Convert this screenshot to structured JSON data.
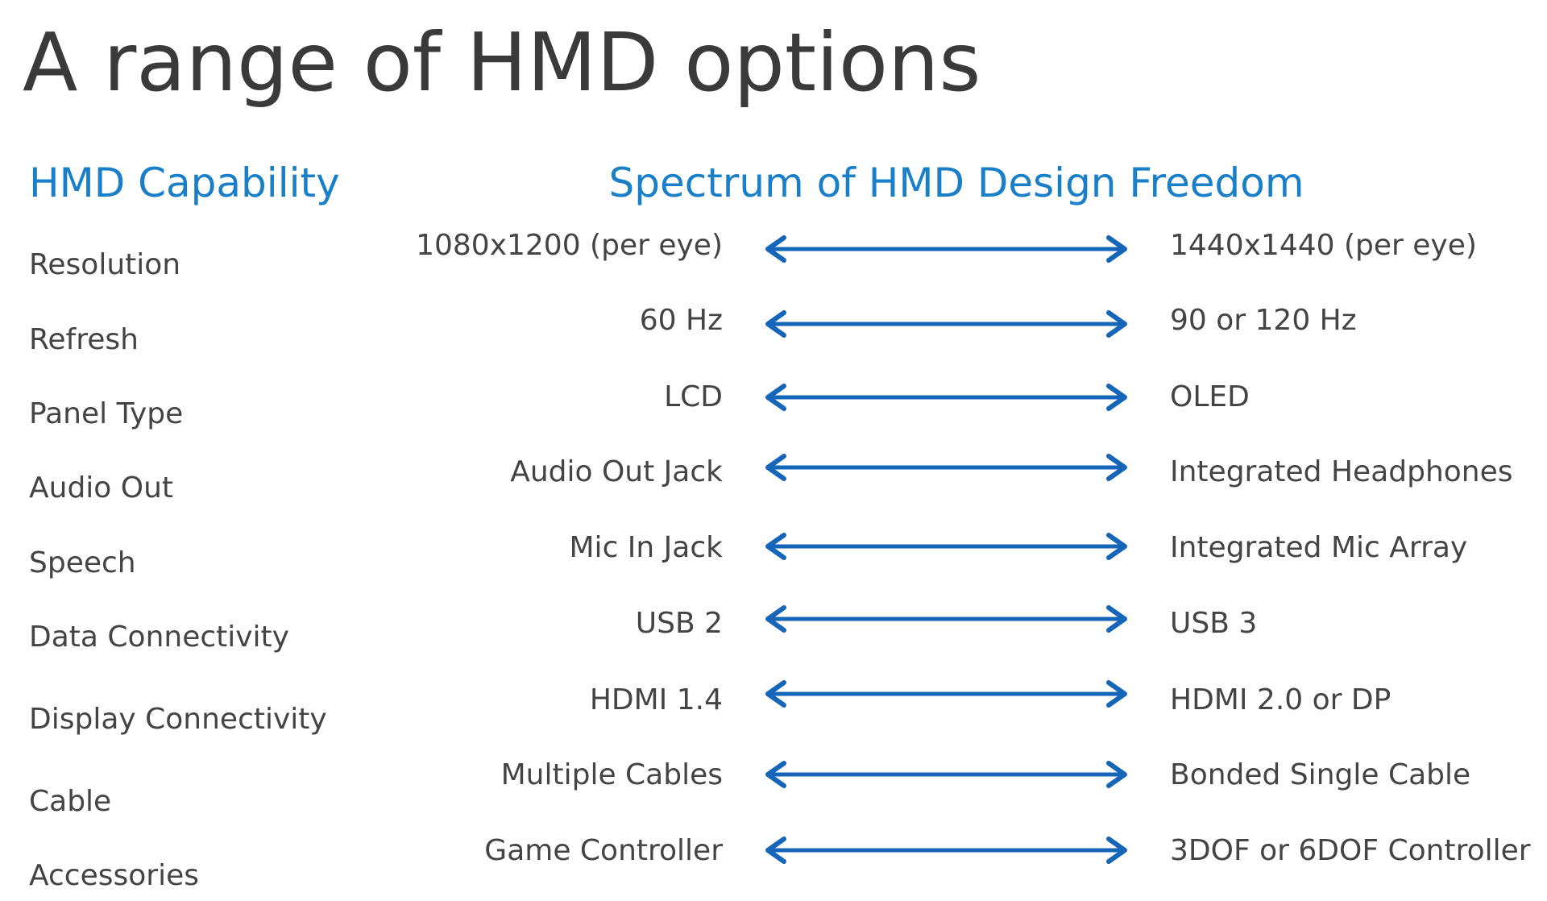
{
  "title": "A range of HMD options",
  "headers": {
    "capability": "HMD Capability",
    "spectrum": "Spectrum of HMD Design Freedom"
  },
  "rows": [
    {
      "capability": "Resolution",
      "min": "1080x1200 (per eye)",
      "max": "1440x1440 (per eye)"
    },
    {
      "capability": "Refresh",
      "min": "60 Hz",
      "max": "90 or 120 Hz"
    },
    {
      "capability": "Panel Type",
      "min": "LCD",
      "max": "OLED"
    },
    {
      "capability": "Audio Out",
      "min": "Audio Out Jack",
      "max": "Integrated Headphones"
    },
    {
      "capability": "Speech",
      "min": "Mic In Jack",
      "max": "Integrated Mic Array"
    },
    {
      "capability": "Data Connectivity",
      "min": "USB 2",
      "max": "USB 3"
    },
    {
      "capability": "Display Connectivity",
      "min": "HDMI 1.4",
      "max": "HDMI 2.0 or DP"
    },
    {
      "capability": "Cable",
      "min": "Multiple Cables",
      "max": "Bonded Single Cable"
    },
    {
      "capability": "Accessories",
      "min": "Game Controller",
      "max": "3DOF or 6DOF Controller"
    }
  ]
}
